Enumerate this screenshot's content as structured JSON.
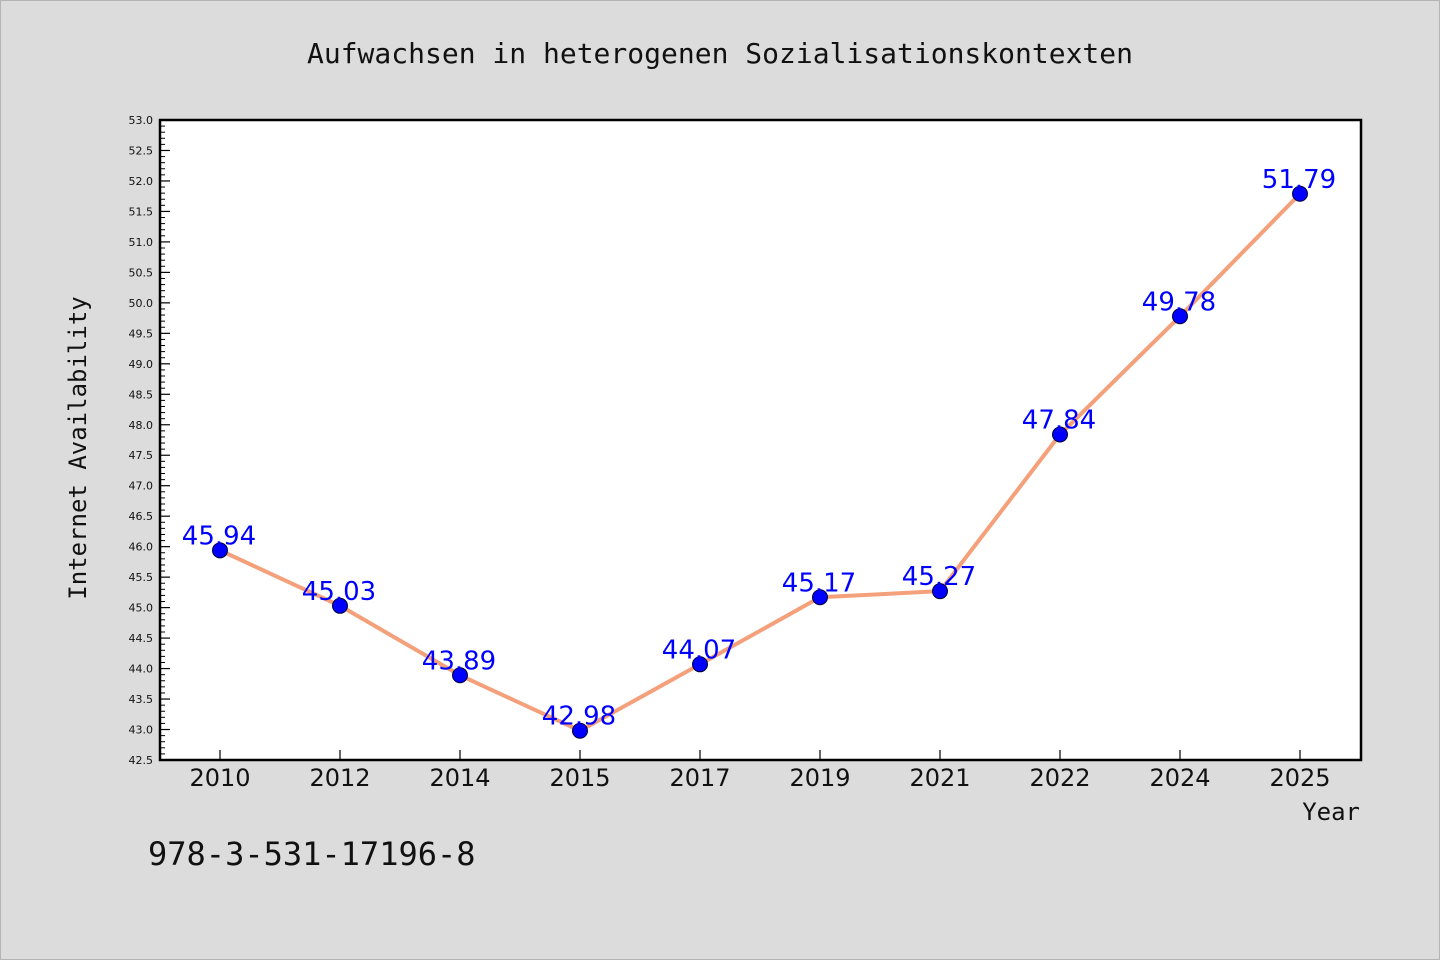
{
  "chart_data": {
    "type": "line",
    "title": "Aufwachsen in heterogenen Sozialisationskontexten",
    "xlabel": "Year",
    "ylabel": "Internet Availability",
    "categories": [
      "2010",
      "2012",
      "2014",
      "2015",
      "2017",
      "2019",
      "2021",
      "2022",
      "2024",
      "2025"
    ],
    "series": [
      {
        "values": [
          45.94,
          45.03,
          43.89,
          42.98,
          44.07,
          45.17,
          45.27,
          47.84,
          49.78,
          51.79
        ],
        "labels": [
          "45.94",
          "45.03",
          "43.89",
          "42.98",
          "44.07",
          "45.17",
          "45.27",
          "47.84",
          "49.78",
          "51.79"
        ],
        "line_color": "#f4a07a",
        "marker_color": "#0000ff"
      }
    ],
    "ylim": [
      42.5,
      53.0
    ],
    "yticks": [
      "42.5",
      "43.0",
      "43.5",
      "44.0",
      "44.5",
      "45.0",
      "45.5",
      "46.0",
      "46.5",
      "47.0",
      "47.5",
      "48.0",
      "48.5",
      "49.0",
      "49.5",
      "50.0",
      "50.5",
      "51.0",
      "51.5",
      "52.0",
      "52.5",
      "53.0"
    ],
    "grid": false,
    "legend": "none",
    "label_color": "#0000ff",
    "background_color": "#dcdcdc",
    "plot_background": "#ffffff"
  },
  "annotation": {
    "isbn": "978-3-531-17196-8"
  }
}
